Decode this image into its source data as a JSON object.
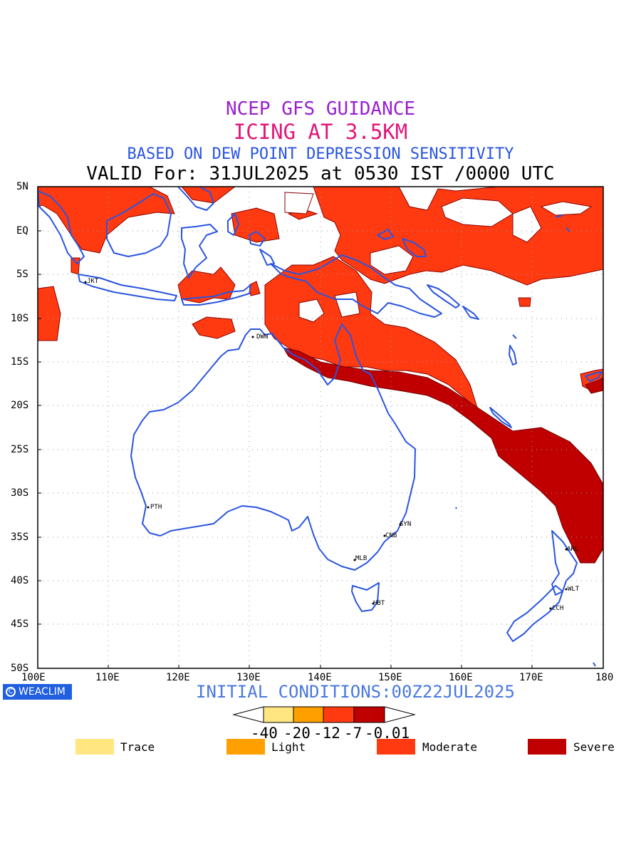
{
  "titles": {
    "line1": "NCEP GFS GUIDANCE",
    "line2": "ICING AT 3.5KM",
    "line3": "BASED ON DEW POINT DEPRESSION SENSITIVITY",
    "line4": "VALID For: 31JUL2025 at 0530 IST /0000 UTC"
  },
  "axes": {
    "lat_labels": [
      "5N",
      "EQ",
      "5S",
      "10S",
      "15S",
      "20S",
      "25S",
      "30S",
      "35S",
      "40S",
      "45S",
      "50S"
    ],
    "lon_labels": [
      "100E",
      "110E",
      "120E",
      "130E",
      "140E",
      "150E",
      "160E",
      "170E",
      "180"
    ]
  },
  "cities": [
    {
      "code": "JKT"
    },
    {
      "code": "DWN"
    },
    {
      "code": "PTH"
    },
    {
      "code": "SYN"
    },
    {
      "code": "CNB"
    },
    {
      "code": "MLB"
    },
    {
      "code": "HBT"
    },
    {
      "code": "AKL"
    },
    {
      "code": "WLT"
    },
    {
      "code": "CCH"
    }
  ],
  "logo": "WEACLIM",
  "initial_conditions": "INITIAL CONDITIONS:00Z22JUL2025",
  "colorbar": {
    "ticks": [
      "-40",
      "-20",
      "-12",
      "-7",
      "-0.01"
    ],
    "colors": [
      "#ffe680",
      "#ffa000",
      "#ff3a10",
      "#c00000"
    ]
  },
  "legend": [
    {
      "label": "Trace",
      "color": "#ffe680"
    },
    {
      "label": "Light",
      "color": "#ffa000"
    },
    {
      "label": "Moderate",
      "color": "#ff3a10"
    },
    {
      "label": "Severe",
      "color": "#c00000"
    }
  ],
  "colors": {
    "moderate": "#ff3a10",
    "severe": "#c00000",
    "coast": "#2a55e0",
    "grid": "#9a9a9a"
  }
}
